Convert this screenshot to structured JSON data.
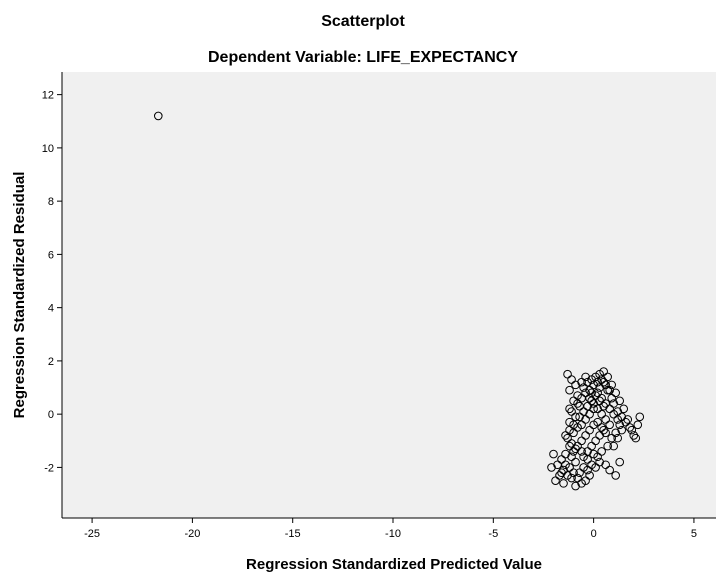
{
  "chart_data": {
    "type": "scatter",
    "title": "Scatterplot",
    "subtitle": "Dependent Variable: LIFE_EXPECTANCY",
    "xlabel": "Regression Standardized Predicted Value",
    "ylabel": "Regression Standardized Residual",
    "xlim": [
      -26.5,
      6.1
    ],
    "ylim": [
      -3.9,
      12.85
    ],
    "xticks": [
      -25,
      -20,
      -15,
      -10,
      -5,
      0,
      5
    ],
    "yticks": [
      -2,
      0,
      2,
      4,
      6,
      8,
      10,
      12
    ],
    "grid": false,
    "colors": {
      "plot_bg": "#f0f0f0",
      "marker_stroke": "#000000"
    },
    "points": [
      [
        -21.7,
        11.2
      ],
      [
        -1.3,
        1.5
      ],
      [
        -1.1,
        1.3
      ],
      [
        -0.9,
        1.1
      ],
      [
        -1.2,
        0.9
      ],
      [
        -0.8,
        0.7
      ],
      [
        -1.0,
        0.5
      ],
      [
        -0.7,
        0.3
      ],
      [
        -1.1,
        0.1
      ],
      [
        -0.9,
        -0.1
      ],
      [
        -1.2,
        -0.3
      ],
      [
        -0.8,
        -0.5
      ],
      [
        -1.0,
        -0.7
      ],
      [
        -1.3,
        -0.9
      ],
      [
        -1.1,
        -1.1
      ],
      [
        -0.9,
        -1.3
      ],
      [
        -1.4,
        -1.5
      ],
      [
        -1.6,
        -1.7
      ],
      [
        -1.8,
        -1.9
      ],
      [
        -1.5,
        -2.1
      ],
      [
        -1.7,
        -2.3
      ],
      [
        -1.2,
        -2.0
      ],
      [
        -1.0,
        -2.2
      ],
      [
        -0.8,
        -2.4
      ],
      [
        -0.6,
        -2.6
      ],
      [
        -0.4,
        -2.5
      ],
      [
        -0.9,
        -2.7
      ],
      [
        -2.1,
        -2.0
      ],
      [
        -2.0,
        -1.5
      ],
      [
        -1.9,
        -2.5
      ],
      [
        -1.5,
        -2.6
      ],
      [
        -0.2,
        -2.3
      ],
      [
        0.1,
        -2.0
      ],
      [
        0.3,
        -1.8
      ],
      [
        0.6,
        -1.9
      ],
      [
        0.8,
        -2.1
      ],
      [
        1.1,
        -2.3
      ],
      [
        1.3,
        -1.8
      ],
      [
        1.0,
        -1.2
      ],
      [
        1.2,
        -0.9
      ],
      [
        1.4,
        -0.6
      ],
      [
        1.6,
        -0.3
      ],
      [
        1.8,
        -0.5
      ],
      [
        2.0,
        -0.8
      ],
      [
        2.2,
        -0.4
      ],
      [
        2.3,
        -0.1
      ],
      [
        1.5,
        0.2
      ],
      [
        1.3,
        0.5
      ],
      [
        1.1,
        0.8
      ],
      [
        0.9,
        1.1
      ],
      [
        0.7,
        1.4
      ],
      [
        0.5,
        1.6
      ],
      [
        0.3,
        1.5
      ],
      [
        0.1,
        1.4
      ],
      [
        -0.1,
        1.3
      ],
      [
        -0.3,
        1.2
      ],
      [
        -0.5,
        1.0
      ],
      [
        -0.4,
        0.8
      ],
      [
        -0.2,
        0.6
      ],
      [
        0.0,
        0.4
      ],
      [
        0.2,
        0.2
      ],
      [
        0.4,
        0.0
      ],
      [
        0.6,
        -0.2
      ],
      [
        0.8,
        -0.4
      ],
      [
        0.5,
        -0.6
      ],
      [
        0.3,
        -0.8
      ],
      [
        0.1,
        -1.0
      ],
      [
        -0.1,
        -1.2
      ],
      [
        -0.3,
        -1.4
      ],
      [
        -0.5,
        -1.6
      ],
      [
        -0.2,
        0.9
      ],
      [
        0.0,
        1.1
      ],
      [
        0.2,
        0.8
      ],
      [
        0.4,
        0.6
      ],
      [
        0.6,
        0.4
      ],
      [
        0.8,
        0.2
      ],
      [
        1.0,
        0.0
      ],
      [
        1.2,
        -0.2
      ],
      [
        0.9,
        0.6
      ],
      [
        0.7,
        0.9
      ],
      [
        0.5,
        1.2
      ],
      [
        0.3,
        1.0
      ],
      [
        0.1,
        0.7
      ],
      [
        -0.1,
        0.5
      ],
      [
        -0.3,
        0.3
      ],
      [
        -0.5,
        0.1
      ],
      [
        -0.7,
        -0.1
      ],
      [
        -0.6,
        -0.4
      ],
      [
        -0.4,
        -0.2
      ],
      [
        -0.2,
        0.0
      ],
      [
        0.0,
        0.2
      ],
      [
        0.2,
        -0.3
      ],
      [
        0.4,
        -0.5
      ],
      [
        0.6,
        -0.7
      ],
      [
        0.9,
        -0.9
      ],
      [
        1.1,
        -0.7
      ],
      [
        1.3,
        -0.4
      ],
      [
        0.5,
        0.3
      ],
      [
        0.3,
        0.5
      ],
      [
        -0.1,
        0.8
      ],
      [
        -0.6,
        0.6
      ],
      [
        -0.8,
        0.4
      ],
      [
        -0.6,
        1.2
      ],
      [
        -0.4,
        1.4
      ],
      [
        0.0,
        -0.4
      ],
      [
        -0.2,
        -0.6
      ],
      [
        -0.4,
        -0.8
      ],
      [
        -0.6,
        -1.0
      ],
      [
        -0.8,
        -1.2
      ],
      [
        -0.6,
        -1.4
      ],
      [
        -0.3,
        -1.7
      ],
      [
        -0.1,
        -1.9
      ],
      [
        0.2,
        -1.6
      ],
      [
        0.4,
        -1.4
      ],
      [
        0.7,
        -1.2
      ],
      [
        -1.4,
        -1.9
      ],
      [
        -1.3,
        -2.3
      ],
      [
        -1.6,
        -2.2
      ],
      [
        -1.1,
        -2.4
      ],
      [
        -0.7,
        -2.2
      ],
      [
        -0.5,
        -2.0
      ],
      [
        -0.9,
        -1.8
      ],
      [
        -1.1,
        -1.6
      ],
      [
        -0.3,
        -2.1
      ],
      [
        0.0,
        -1.5
      ],
      [
        0.2,
        1.2
      ],
      [
        0.4,
        1.3
      ],
      [
        0.6,
        1.1
      ],
      [
        0.8,
        0.9
      ],
      [
        1.0,
        0.4
      ],
      [
        1.2,
        0.1
      ],
      [
        1.4,
        -0.1
      ],
      [
        1.7,
        -0.2
      ],
      [
        1.9,
        -0.6
      ],
      [
        2.1,
        -0.9
      ],
      [
        -1.2,
        0.2
      ],
      [
        -1.0,
        -0.4
      ],
      [
        -1.2,
        -0.6
      ],
      [
        -1.4,
        -0.8
      ],
      [
        -1.2,
        -1.2
      ],
      [
        -1.0,
        -1.4
      ]
    ]
  }
}
